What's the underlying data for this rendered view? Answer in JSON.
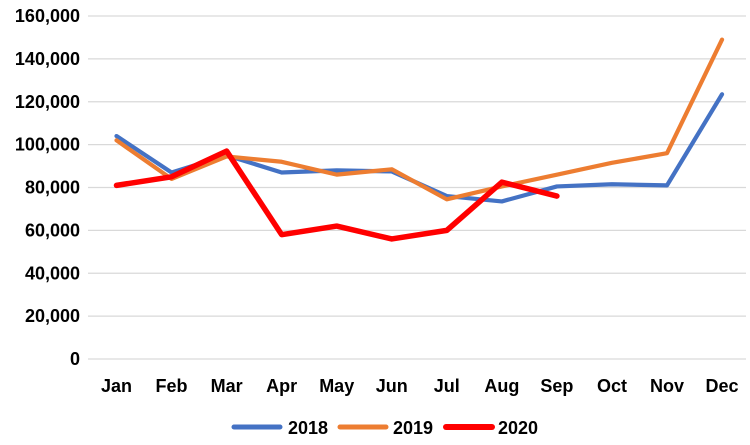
{
  "chart_data": {
    "type": "line",
    "title": "",
    "xlabel": "",
    "ylabel": "",
    "categories": [
      "Jan",
      "Feb",
      "Mar",
      "Apr",
      "May",
      "Jun",
      "Jul",
      "Aug",
      "Sep",
      "Oct",
      "Nov",
      "Dec"
    ],
    "series": [
      {
        "name": "2018",
        "color": "#4472C4",
        "values": [
          104000,
          87000,
          95000,
          87000,
          88000,
          87500,
          76000,
          73500,
          80500,
          81500,
          81000,
          123500
        ]
      },
      {
        "name": "2019",
        "color": "#ED7D31",
        "values": [
          102000,
          84000,
          94500,
          92000,
          86000,
          88500,
          74500,
          80500,
          86000,
          91500,
          96000,
          149000
        ]
      },
      {
        "name": "2020",
        "color": "#FF0000",
        "values": [
          81000,
          85000,
          97000,
          58000,
          62000,
          56000,
          60000,
          82500,
          76000,
          null,
          null,
          null
        ]
      }
    ],
    "ylim": [
      0,
      160000
    ],
    "ytick_step": 20000,
    "ytick_labels": [
      "0",
      "20,000",
      "40,000",
      "60,000",
      "80,000",
      "100,000",
      "120,000",
      "140,000",
      "160,000"
    ],
    "grid": "horizontal",
    "legend_position": "bottom",
    "legend_entries": [
      "2018",
      "2019",
      "2020"
    ]
  },
  "colors": {
    "background": "#FFFFFF",
    "gridline": "#D9D9D9",
    "text": "#000000",
    "series_2018": "#4472C4",
    "series_2019": "#ED7D31",
    "series_2020": "#FF0000"
  }
}
